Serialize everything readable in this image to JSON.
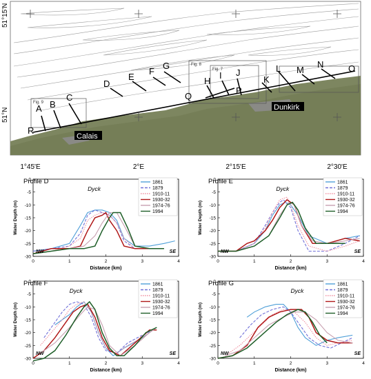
{
  "map": {
    "lat_labels": [
      "51°15'N",
      "51°N"
    ],
    "lon_labels": [
      "1°45'E",
      "2°E",
      "2°15'E",
      "2°30'E"
    ],
    "places": [
      "Calais",
      "Dunkirk"
    ],
    "fig_boxes": [
      "Fig. 9",
      "Fig. 8",
      "Fig. 7"
    ],
    "profile_letters": [
      "A",
      "B",
      "C",
      "D",
      "E",
      "F",
      "G",
      "H",
      "I",
      "J",
      "K",
      "L",
      "M",
      "N",
      "O",
      "P",
      "Q",
      "R"
    ],
    "colors": {
      "sea": "#ffffff",
      "land": "#7d8660",
      "contour": "#9a9a9a",
      "profile": "#000000"
    }
  },
  "legend_labels": [
    "1861",
    "1879",
    "1910-11",
    "1930-32",
    "1974-76",
    "1994"
  ],
  "chart_data": [
    {
      "type": "line",
      "title": "Profile D",
      "annotation": "Dyck",
      "xlabel": "Distance (km)",
      "ylabel": "Water Depth (m)",
      "xlim": [
        0,
        4
      ],
      "ylim": [
        -30,
        0
      ],
      "xticks": [
        0,
        1,
        2,
        3,
        4
      ],
      "yticks": [
        0,
        -5,
        -10,
        -15,
        -20,
        -25,
        -30
      ],
      "corner_left": "NW",
      "corner_right": "SE",
      "series": [
        {
          "name": "1861",
          "color": "#4e9fd8",
          "dash": "solid",
          "x": [
            0,
            0.5,
            1,
            1.3,
            1.5,
            1.7,
            1.9,
            2.1,
            2.3,
            2.5,
            2.8,
            3.2,
            3.6,
            3.9
          ],
          "y": [
            -28,
            -27,
            -25,
            -18,
            -13,
            -12,
            -12,
            -13,
            -16,
            -23,
            -26,
            -26,
            -25,
            -24
          ]
        },
        {
          "name": "1879",
          "color": "#7070d8",
          "dash": "dashed",
          "x": [
            0,
            0.5,
            1,
            1.3,
            1.5,
            1.7,
            1.9,
            2.1,
            2.3,
            2.5,
            2.8,
            3.2,
            3.6
          ],
          "y": [
            -28,
            -27,
            -26,
            -21,
            -14,
            -12,
            -13,
            -14,
            -17,
            -24,
            -27,
            -27,
            -27
          ]
        },
        {
          "name": "1910-11",
          "color": "#f08fa0",
          "dash": "dotted",
          "x": [
            0,
            0.5,
            1,
            1.3,
            1.5,
            1.7,
            1.9,
            2.1,
            2.3,
            2.5,
            2.8,
            3.2,
            3.6
          ],
          "y": [
            -29,
            -28,
            -26,
            -23,
            -16,
            -14,
            -13,
            -14,
            -17,
            -23,
            -27,
            -27,
            -27
          ]
        },
        {
          "name": "1930-32",
          "color": "#b01818",
          "dash": "solid",
          "x": [
            0,
            0.5,
            1,
            1.3,
            1.5,
            1.7,
            1.9,
            2.0,
            2.1,
            2.3,
            2.5,
            2.8,
            3.2,
            3.6
          ],
          "y": [
            -29,
            -27,
            -27,
            -26,
            -20,
            -15,
            -14,
            -13,
            -16,
            -20,
            -26,
            -27,
            -27,
            -27
          ]
        },
        {
          "name": "1974-76",
          "color": "#c8a0b0",
          "dash": "solid",
          "x": [
            0,
            0.5,
            1,
            1.4,
            1.7,
            1.9,
            2.1,
            2.3,
            2.5,
            2.8,
            3.2,
            3.6
          ],
          "y": [
            -29,
            -28,
            -27,
            -26,
            -22,
            -17,
            -13,
            -13,
            -18,
            -26,
            -27,
            -27
          ]
        },
        {
          "name": "1994",
          "color": "#1e5e28",
          "dash": "solid",
          "x": [
            0,
            0.5,
            1,
            1.4,
            1.7,
            1.9,
            2.1,
            2.2,
            2.4,
            2.6,
            2.8,
            3.2,
            3.6
          ],
          "y": [
            -29,
            -28,
            -27,
            -27,
            -26,
            -20,
            -15,
            -13,
            -13,
            -19,
            -26,
            -27,
            -27
          ]
        }
      ]
    },
    {
      "type": "line",
      "title": "Profile E",
      "annotation": "Dyck",
      "xlabel": "Distance (km)",
      "ylabel": "Water Depth (m)",
      "xlim": [
        0,
        4
      ],
      "ylim": [
        -30,
        0
      ],
      "xticks": [
        0,
        1,
        2,
        3,
        4
      ],
      "yticks": [
        0,
        -5,
        -10,
        -15,
        -20,
        -25,
        -30
      ],
      "corner_left": "NW",
      "corner_right": "SE",
      "series": [
        {
          "name": "1861",
          "color": "#4e9fd8",
          "dash": "solid",
          "x": [
            0,
            0.5,
            1,
            1.3,
            1.5,
            1.7,
            1.85,
            2.0,
            2.2,
            2.5,
            3.0,
            3.5,
            3.9
          ],
          "y": [
            -28,
            -28,
            -25,
            -20,
            -14,
            -10,
            -9,
            -10,
            -14,
            -22,
            -25,
            -23,
            -22
          ]
        },
        {
          "name": "1879",
          "color": "#7070d8",
          "dash": "dashed",
          "x": [
            0,
            0.5,
            1,
            1.3,
            1.5,
            1.7,
            1.8,
            2.0,
            2.2,
            2.5,
            3.0,
            3.5,
            3.9
          ],
          "y": [
            -28,
            -28,
            -25,
            -18,
            -13,
            -9,
            -8,
            -11,
            -20,
            -28,
            -28,
            -25,
            -22
          ]
        },
        {
          "name": "1910-11",
          "color": "#f08fa0",
          "dash": "dotted",
          "x": [
            0,
            0.5,
            1,
            1.3,
            1.5,
            1.7,
            1.9,
            2.0,
            2.2,
            2.5,
            3.0,
            3.5,
            3.9
          ],
          "y": [
            -28,
            -28,
            -25,
            -19,
            -13,
            -8,
            -7,
            -10,
            -18,
            -26,
            -28,
            -26,
            -24
          ]
        },
        {
          "name": "1930-32",
          "color": "#b01818",
          "dash": "solid",
          "x": [
            0,
            0.5,
            0.8,
            1,
            1.3,
            1.5,
            1.7,
            1.9,
            2.1,
            2.3,
            2.6,
            3.0,
            3.5,
            3.9
          ],
          "y": [
            -28,
            -28,
            -25,
            -24,
            -20,
            -16,
            -11,
            -8,
            -10,
            -18,
            -25,
            -25,
            -23,
            -24
          ]
        },
        {
          "name": "1974-76",
          "color": "#c8a0b0",
          "dash": "solid",
          "x": [
            0,
            0.5,
            1,
            1.4,
            1.7,
            1.95,
            2.1,
            2.3,
            2.6,
            3.0,
            3.5,
            3.9
          ],
          "y": [
            -28,
            -28,
            -26,
            -22,
            -14,
            -9,
            -10,
            -18,
            -24,
            -25,
            -24,
            -23
          ]
        },
        {
          "name": "1994",
          "color": "#1e5e28",
          "dash": "solid",
          "x": [
            0,
            0.5,
            1,
            1.4,
            1.7,
            1.9,
            2.05,
            2.2,
            2.4,
            2.7,
            3.0,
            3.5
          ],
          "y": [
            -28,
            -28,
            -26,
            -22,
            -15,
            -10,
            -9,
            -12,
            -19,
            -25,
            -25,
            -25
          ]
        }
      ]
    },
    {
      "type": "line",
      "title": "Profile F",
      "annotation": "Dyck",
      "xlabel": "Distance (km)",
      "ylabel": "Water Depth (m)",
      "xlim": [
        0,
        4
      ],
      "ylim": [
        -30,
        0
      ],
      "xticks": [
        0,
        1,
        2,
        3,
        4
      ],
      "yticks": [
        0,
        -5,
        -10,
        -15,
        -20,
        -25,
        -30
      ],
      "corner_left": "NW",
      "corner_right": "SE",
      "series": [
        {
          "name": "1861",
          "color": "#4e9fd8",
          "dash": "solid",
          "x": [
            0.6,
            0.8,
            1.0,
            1.2,
            1.4,
            1.6,
            1.8,
            2.0,
            2.2,
            2.5,
            3.0,
            3.3
          ],
          "y": [
            -17,
            -15,
            -13,
            -10,
            -8,
            -12,
            -20,
            -26,
            -29,
            -26,
            -22,
            -19
          ]
        },
        {
          "name": "1879",
          "color": "#7070d8",
          "dash": "dashed",
          "x": [
            0.3,
            0.6,
            0.8,
            1.0,
            1.2,
            1.4,
            1.6,
            1.8,
            2.0,
            2.3,
            2.6,
            3.0,
            3.3
          ],
          "y": [
            -22,
            -16,
            -12,
            -9,
            -8,
            -9,
            -14,
            -22,
            -27,
            -28,
            -24,
            -21,
            -19
          ]
        },
        {
          "name": "1910-11",
          "color": "#f08fa0",
          "dash": "dotted",
          "x": [
            0.2,
            0.5,
            0.8,
            1.0,
            1.2,
            1.4,
            1.6,
            1.8,
            2.0,
            2.3,
            2.6,
            3.0,
            3.3
          ],
          "y": [
            -25,
            -20,
            -15,
            -11,
            -9,
            -8,
            -12,
            -20,
            -26,
            -28,
            -25,
            -22,
            -19
          ]
        },
        {
          "name": "1930-32",
          "color": "#b01818",
          "dash": "solid",
          "x": [
            0,
            0.3,
            0.6,
            0.9,
            1.1,
            1.3,
            1.5,
            1.7,
            1.9,
            2.1,
            2.4,
            2.8,
            3.2,
            3.4
          ],
          "y": [
            -30,
            -27,
            -22,
            -16,
            -12,
            -10,
            -9,
            -14,
            -22,
            -27,
            -29,
            -24,
            -19,
            -19
          ]
        },
        {
          "name": "1974-76",
          "color": "#c8a0b0",
          "dash": "solid",
          "x": [
            0.2,
            0.6,
            1.0,
            1.3,
            1.5,
            1.7,
            1.9,
            2.1,
            2.4,
            2.8,
            3.2,
            3.4
          ],
          "y": [
            -28,
            -24,
            -18,
            -13,
            -10,
            -11,
            -17,
            -25,
            -29,
            -25,
            -20,
            -18
          ]
        },
        {
          "name": "1994",
          "color": "#1e5e28",
          "dash": "solid",
          "x": [
            0,
            0.3,
            0.6,
            0.9,
            1.2,
            1.4,
            1.55,
            1.7,
            1.9,
            2.1,
            2.3,
            2.5,
            2.8,
            3.1,
            3.4
          ],
          "y": [
            -31,
            -30,
            -27,
            -21,
            -14,
            -10,
            -8,
            -11,
            -20,
            -26,
            -29,
            -29,
            -25,
            -20,
            -18
          ]
        }
      ]
    },
    {
      "type": "line",
      "title": "Profile G",
      "annotation": "Dyck",
      "xlabel": "Distance (km)",
      "ylabel": "Water Depth (m)",
      "xlim": [
        0,
        4
      ],
      "ylim": [
        -30,
        0
      ],
      "xticks": [
        0,
        1,
        2,
        3,
        4
      ],
      "yticks": [
        0,
        -5,
        -10,
        -15,
        -20,
        -25,
        -30
      ],
      "corner_left": "NW",
      "corner_right": "SE",
      "series": [
        {
          "name": "1861",
          "color": "#4e9fd8",
          "dash": "solid",
          "x": [
            0.8,
            1.0,
            1.3,
            1.6,
            1.8,
            2.0,
            2.2,
            2.4,
            2.7,
            3.0,
            3.3,
            3.7
          ],
          "y": [
            -14,
            -12,
            -10,
            -9,
            -9,
            -12,
            -18,
            -22,
            -25,
            -23,
            -22,
            -21
          ]
        },
        {
          "name": "1879",
          "color": "#7070d8",
          "dash": "dashed",
          "x": [
            0.6,
            0.9,
            1.2,
            1.5,
            1.8,
            2.0,
            2.2,
            2.5,
            2.8,
            3.1,
            3.4,
            3.7
          ],
          "y": [
            -22,
            -17,
            -13,
            -11,
            -10,
            -12,
            -16,
            -22,
            -25,
            -26,
            -24,
            -22
          ]
        },
        {
          "name": "1910-11",
          "color": "#f08fa0",
          "dash": "dotted",
          "x": [
            0.3,
            0.6,
            0.9,
            1.2,
            1.5,
            1.8,
            2.1,
            2.4,
            2.7,
            3.0,
            3.3,
            3.7
          ],
          "y": [
            -28,
            -25,
            -21,
            -17,
            -13,
            -11,
            -12,
            -16,
            -22,
            -25,
            -24,
            -23
          ]
        },
        {
          "name": "1930-32",
          "color": "#b01818",
          "dash": "solid",
          "x": [
            0,
            0.4,
            0.8,
            1.1,
            1.4,
            1.7,
            2.0,
            2.3,
            2.5,
            2.7,
            3.0,
            3.3,
            3.7
          ],
          "y": [
            -30,
            -29,
            -25,
            -18,
            -14,
            -12,
            -11,
            -11,
            -14,
            -20,
            -23,
            -24,
            -24
          ]
        },
        {
          "name": "1974-76",
          "color": "#c8a0b0",
          "dash": "solid",
          "x": [
            0.2,
            0.6,
            1.0,
            1.4,
            1.8,
            2.1,
            2.4,
            2.7,
            3.0,
            3.3,
            3.7
          ],
          "y": [
            -29,
            -27,
            -22,
            -17,
            -14,
            -12,
            -12,
            -15,
            -20,
            -23,
            -24
          ]
        },
        {
          "name": "1994",
          "color": "#1e5e28",
          "dash": "solid",
          "x": [
            0,
            0.4,
            0.8,
            1.2,
            1.6,
            1.9,
            2.2,
            2.4,
            2.6,
            2.8,
            3.0
          ],
          "y": [
            -30,
            -29,
            -26,
            -21,
            -16,
            -13,
            -11,
            -12,
            -16,
            -21,
            -24
          ]
        }
      ]
    }
  ]
}
